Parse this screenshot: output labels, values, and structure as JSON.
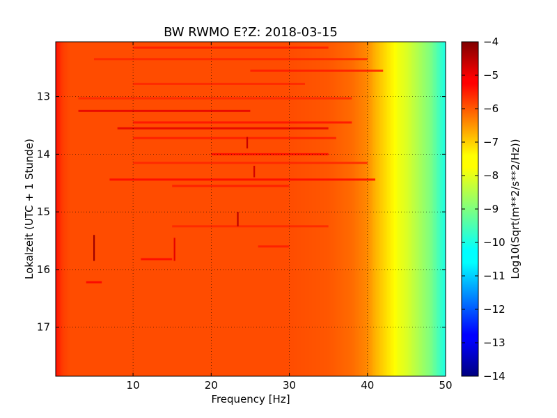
{
  "chart_data": {
    "type": "heatmap",
    "title": "BW RWMO E?Z: 2018-03-15",
    "xlabel": "Frequency [Hz]",
    "ylabel": "Lokalzeit (UTC + 1 Stunde)",
    "xlim": [
      0.1,
      50
    ],
    "ylim": [
      12.05,
      17.85
    ],
    "y_inverted": true,
    "xticks": [
      10,
      20,
      30,
      40,
      50
    ],
    "yticks": [
      13,
      14,
      15,
      16,
      17
    ],
    "grid": true,
    "colorbar": {
      "label": "Log10(Sqrt(m**2/s**2/Hz))",
      "range": [
        -14,
        -4
      ],
      "ticks": [
        -4,
        -5,
        -6,
        -7,
        -8,
        -9,
        -10,
        -11,
        -12,
        -13,
        -14
      ],
      "colormap": "jet"
    },
    "frequency_profile": {
      "x": [
        0,
        0.5,
        1,
        2,
        5,
        10,
        20,
        30,
        35,
        38,
        40,
        41,
        42,
        43,
        44,
        45,
        46,
        47,
        48,
        49,
        50
      ],
      "values": [
        -5.3,
        -5.6,
        -5.85,
        -6.0,
        -6.0,
        -6.0,
        -6.0,
        -6.0,
        -6.1,
        -6.3,
        -6.6,
        -7.0,
        -7.3,
        -7.6,
        -7.9,
        -8.1,
        -8.4,
        -8.7,
        -9.0,
        -9.5,
        -10.0
      ]
    },
    "bands": [
      {
        "t": 12.15,
        "f0": 10,
        "f1": 35,
        "value": -5.5
      },
      {
        "t": 12.35,
        "f0": 5,
        "f1": 40,
        "value": -5.6
      },
      {
        "t": 12.55,
        "f0": 25,
        "f1": 42,
        "value": -5.5
      },
      {
        "t": 12.78,
        "f0": 10,
        "f1": 32,
        "value": -5.6
      },
      {
        "t": 13.03,
        "f0": 3,
        "f1": 38,
        "value": -5.6
      },
      {
        "t": 13.25,
        "f0": 3,
        "f1": 25,
        "value": -5.0
      },
      {
        "t": 13.45,
        "f0": 10,
        "f1": 38,
        "value": -5.4
      },
      {
        "t": 13.55,
        "f0": 8,
        "f1": 35,
        "value": -5.0
      },
      {
        "t": 13.72,
        "f0": 10,
        "f1": 36,
        "value": -5.5
      },
      {
        "t": 14.0,
        "f0": 20,
        "f1": 35,
        "value": -5.3
      },
      {
        "t": 14.15,
        "f0": 10,
        "f1": 40,
        "value": -5.6
      },
      {
        "t": 14.44,
        "f0": 7,
        "f1": 41,
        "value": -5.3
      },
      {
        "t": 14.55,
        "f0": 15,
        "f1": 30,
        "value": -5.5
      },
      {
        "t": 15.25,
        "f0": 15,
        "f1": 35,
        "value": -5.6
      },
      {
        "t": 15.6,
        "f0": 26,
        "f1": 30,
        "value": -5.5
      },
      {
        "t": 15.82,
        "f0": 11,
        "f1": 15,
        "value": -5.3
      },
      {
        "t": 16.22,
        "f0": 4,
        "f1": 6,
        "value": -5.2
      }
    ],
    "transients": [
      {
        "f": 5.0,
        "t0": 15.4,
        "t1": 15.85,
        "value": -4.3
      },
      {
        "f": 15.3,
        "t0": 15.45,
        "t1": 15.85,
        "value": -5.0
      },
      {
        "f": 24.6,
        "t0": 13.7,
        "t1": 13.9,
        "value": -4.7
      },
      {
        "f": 25.5,
        "t0": 14.2,
        "t1": 14.4,
        "value": -4.8
      },
      {
        "f": 23.4,
        "t0": 15.0,
        "t1": 15.25,
        "value": -4.6
      }
    ]
  }
}
